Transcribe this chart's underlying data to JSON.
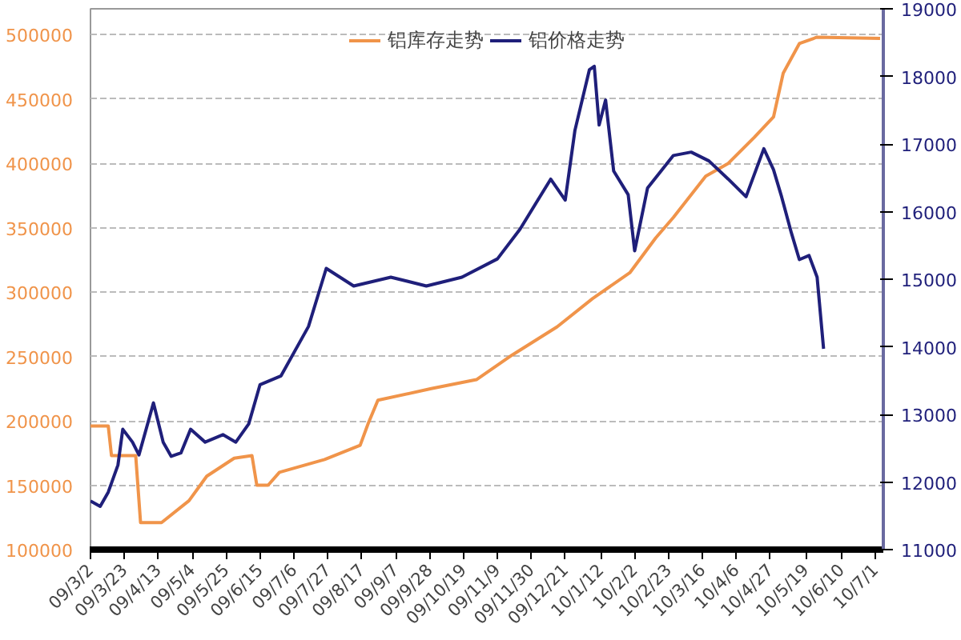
{
  "chart_data": {
    "type": "line",
    "x": [
      "2009-03-02",
      "2009-03-08",
      "2009-03-13",
      "2009-03-19",
      "2009-03-22",
      "2009-03-28",
      "2009-04-01",
      "2009-04-10",
      "2009-04-16",
      "2009-04-21",
      "2009-04-27",
      "2009-05-03",
      "2009-05-12",
      "2009-05-23",
      "2009-05-31",
      "2009-06-08",
      "2009-06-15",
      "2009-06-28",
      "2009-07-15",
      "2009-07-26",
      "2009-08-12",
      "2009-09-04",
      "2009-09-26",
      "2009-10-18",
      "2009-11-09",
      "2009-11-23",
      "2009-12-12",
      "2009-12-21",
      "2009-12-27",
      "2010-01-05",
      "2010-01-08",
      "2010-01-11",
      "2010-01-15",
      "2010-01-20",
      "2010-01-29",
      "2010-02-02",
      "2010-02-10",
      "2010-02-26",
      "2010-03-09",
      "2010-03-20",
      "2010-04-01",
      "2010-04-12",
      "2010-04-23",
      "2010-04-29",
      "2010-05-04",
      "2010-05-10",
      "2010-05-15",
      "2010-05-21",
      "2010-05-26",
      "2010-05-30"
    ],
    "series": [
      {
        "name": "铝库存走势",
        "color": "#f0944a",
        "axis": "y",
        "x": [
          "2009-03-02",
          "2009-03-13",
          "2009-03-15",
          "2009-03-30",
          "2009-04-02",
          "2009-04-15",
          "2009-05-02",
          "2009-05-13",
          "2009-05-30",
          "2009-06-10",
          "2009-06-13",
          "2009-06-20",
          "2009-06-27",
          "2009-07-25",
          "2009-08-16",
          "2009-08-21",
          "2009-08-27",
          "2009-09-29",
          "2009-10-27",
          "2009-11-18",
          "2009-12-16",
          "2010-01-07",
          "2010-01-30",
          "2010-02-15",
          "2010-02-26",
          "2010-03-18",
          "2010-04-01",
          "2010-04-17",
          "2010-04-29",
          "2010-05-05",
          "2010-05-15",
          "2010-05-26",
          "2010-07-04"
        ],
        "values": [
          196000,
          196000,
          173000,
          173000,
          121000,
          121000,
          138000,
          157000,
          171000,
          173000,
          150000,
          150000,
          160000,
          170000,
          181000,
          198000,
          216000,
          225000,
          232000,
          251000,
          273000,
          295000,
          315000,
          342000,
          358000,
          390000,
          400000,
          420000,
          436000,
          470000,
          493000,
          498000,
          497000
        ]
      },
      {
        "name": "铝价格走势",
        "color": "#1f1f7a",
        "axis": "y2",
        "values": [
          11720,
          11640,
          11850,
          12250,
          12780,
          12590,
          12400,
          13170,
          12590,
          12380,
          12430,
          12780,
          12590,
          12700,
          12590,
          12860,
          13440,
          13570,
          14300,
          15160,
          14900,
          15030,
          14900,
          15030,
          15300,
          15740,
          16480,
          16170,
          17200,
          18100,
          18150,
          17280,
          17650,
          16600,
          16250,
          15420,
          16350,
          16830,
          16880,
          16750,
          16480,
          16220,
          16930,
          16620,
          16220,
          15690,
          15290,
          15350,
          15030,
          13970
        ]
      }
    ],
    "xlim": [
      "2009-03-02",
      "2010-07-06"
    ],
    "xticks": [
      {
        "value": "2009-03-02",
        "label": "09/3/2"
      },
      {
        "value": "2009-03-23",
        "label": "09/3/23"
      },
      {
        "value": "2009-04-13",
        "label": "09/4/13"
      },
      {
        "value": "2009-05-04",
        "label": "09/5/4"
      },
      {
        "value": "2009-05-25",
        "label": "09/5/25"
      },
      {
        "value": "2009-06-15",
        "label": "09/6/15"
      },
      {
        "value": "2009-07-06",
        "label": "09/7/6"
      },
      {
        "value": "2009-07-27",
        "label": "09/7/27"
      },
      {
        "value": "2009-08-17",
        "label": "09/8/17"
      },
      {
        "value": "2009-09-07",
        "label": "09/9/7"
      },
      {
        "value": "2009-09-28",
        "label": "09/9/28"
      },
      {
        "value": "2009-10-19",
        "label": "09/10/19"
      },
      {
        "value": "2009-11-09",
        "label": "09/11/9"
      },
      {
        "value": "2009-11-30",
        "label": "09/11/30"
      },
      {
        "value": "2009-12-21",
        "label": "09/12/21"
      },
      {
        "value": "2010-01-12",
        "label": "10/1/12"
      },
      {
        "value": "2010-02-02",
        "label": "10/2/2"
      },
      {
        "value": "2010-02-23",
        "label": "10/2/23"
      },
      {
        "value": "2010-03-16",
        "label": "10/3/16"
      },
      {
        "value": "2010-04-06",
        "label": "10/4/6"
      },
      {
        "value": "2010-04-27",
        "label": "10/4/27"
      },
      {
        "value": "2010-05-19",
        "label": "10/5/19"
      },
      {
        "value": "2010-06-10",
        "label": "10/6/10"
      },
      {
        "value": "2010-07-01",
        "label": "10/7/1"
      }
    ],
    "ylim": [
      100000,
      520000
    ],
    "yticks": [
      100000,
      150000,
      200000,
      250000,
      300000,
      350000,
      400000,
      450000,
      500000
    ],
    "y2lim": [
      11000,
      19000
    ],
    "y2ticks": [
      11000,
      12000,
      13000,
      14000,
      15000,
      16000,
      17000,
      18000,
      19000
    ],
    "grid": "y",
    "legend": "top",
    "marker": "none",
    "line_style": "solid"
  }
}
